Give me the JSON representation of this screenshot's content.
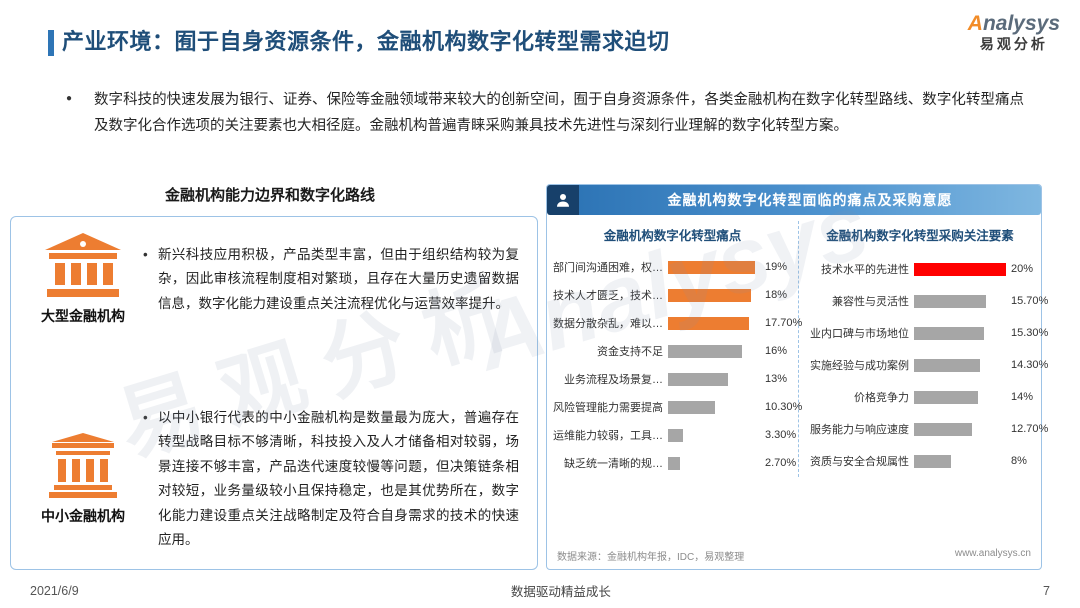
{
  "meta": {
    "date": "2021/6/9",
    "footer_center": "数据驱动精益成长",
    "page_number": "7"
  },
  "logo": {
    "brand": "Analysys",
    "sub": "易观分析"
  },
  "header": {
    "title": "产业环境：囿于自身资源条件，金融机构数字化转型需求迫切"
  },
  "intro": {
    "text": "数字科技的快速发展为银行、证券、保险等金融领域带来较大的创新空间，囿于自身资源条件，各类金融机构在数字化转型路线、数字化转型痛点及数字化合作选项的关注要素也大相径庭。金融机构普遍青睐采购兼具技术先进性与深刻行业理解的数字化转型方案。"
  },
  "left_section": {
    "title": "金融机构能力边界和数字化路线",
    "items": [
      {
        "label": "大型金融机构",
        "text": "新兴科技应用积极，产品类型丰富，但由于组织结构较为复杂，因此审核流程制度相对繁琐，且存在大量历史遗留数据信息，数字化能力建设重点关注流程优化与运营效率提升。"
      },
      {
        "label": "中小金融机构",
        "text": "以中小银行代表的中小金融机构是数量最为庞大，普遍存在转型战略目标不够清晰，科技投入及人才储备相对较弱，场景连接不够丰富，产品迭代速度较慢等问题，但决策链条相对较短，业务量级较小且保持稳定，也是其优势所在，数字化能力建设重点关注战略制定及符合自身需求的技术的快速应用。"
      }
    ]
  },
  "right_section": {
    "header": "金融机构数字化转型面临的痛点及采购意愿",
    "source": "数据来源：金融机构年报，IDC，易观整理",
    "website": "www.analysys.cn"
  },
  "chart_data": [
    {
      "type": "bar",
      "orientation": "horizontal",
      "title": "金融机构数字化转型痛点",
      "categories": [
        "部门间沟通困难，权…",
        "技术人才匮乏，技术…",
        "数据分散杂乱，难以…",
        "资金支持不足",
        "业务流程及场景复…",
        "风险管理能力需要提高",
        "运维能力较弱，工具…",
        "缺乏统一清晰的规…"
      ],
      "values": [
        19,
        18,
        17.7,
        16,
        13,
        10.3,
        3.3,
        2.7
      ],
      "labels": [
        "19%",
        "18%",
        "17.70%",
        "16%",
        "13%",
        "10.30%",
        "3.30%",
        "2.70%"
      ],
      "bar_colors": [
        "#ED7D31",
        "#ED7D31",
        "#ED7D31",
        "#A6A6A6",
        "#A6A6A6",
        "#A6A6A6",
        "#A6A6A6",
        "#A6A6A6"
      ],
      "xlim": [
        0,
        20
      ],
      "grid": false,
      "legend": "none"
    },
    {
      "type": "bar",
      "orientation": "horizontal",
      "title": "金融机构数字化转型采购关注要素",
      "categories": [
        "技术水平的先进性",
        "兼容性与灵活性",
        "业内口碑与市场地位",
        "实施经验与成功案例",
        "价格竞争力",
        "服务能力与响应速度",
        "资质与安全合规属性"
      ],
      "values": [
        20,
        15.7,
        15.3,
        14.3,
        14,
        12.7,
        8
      ],
      "labels": [
        "20%",
        "15.70%",
        "15.30%",
        "14.30%",
        "14%",
        "12.70%",
        "8%"
      ],
      "bar_colors": [
        "#FF0000",
        "#A6A6A6",
        "#A6A6A6",
        "#A6A6A6",
        "#A6A6A6",
        "#A6A6A6",
        "#A6A6A6"
      ],
      "xlim": [
        0,
        20
      ],
      "grid": false,
      "legend": "none"
    }
  ],
  "watermark": {
    "en": "Analysys",
    "cn": "易观分析"
  },
  "colors": {
    "title_navy": "#1F4E79",
    "accent_blue": "#2E75B6",
    "panel_border": "#9DC3E6",
    "orange": "#ED7D31",
    "gray_bar": "#A6A6A6",
    "red_bar": "#FF0000"
  }
}
